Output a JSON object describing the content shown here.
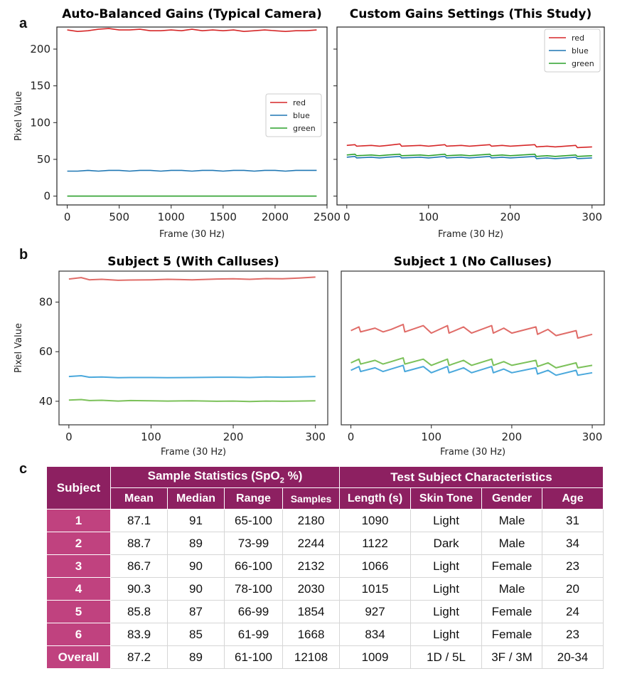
{
  "panels": {
    "a": "a",
    "b": "b",
    "c": "c"
  },
  "chart_data": [
    {
      "id": "a-left",
      "type": "line",
      "title": "Auto-Balanced Gains (Typical Camera)",
      "xlabel": "Frame (30 Hz)",
      "ylabel": "Pixel Value",
      "xlim": [
        -100,
        2500
      ],
      "ylim": [
        -12,
        230
      ],
      "xticks": [
        0,
        500,
        1000,
        1500,
        2000,
        2500
      ],
      "yticks": [
        0,
        50,
        100,
        150,
        200
      ],
      "legend": "center-right",
      "x": [
        0,
        100,
        200,
        300,
        400,
        500,
        600,
        700,
        800,
        900,
        1000,
        1100,
        1200,
        1300,
        1400,
        1500,
        1600,
        1700,
        1800,
        1900,
        2000,
        2100,
        2200,
        2300,
        2400
      ],
      "series": [
        {
          "name": "red",
          "color": "#d62728",
          "values": [
            226,
            224,
            225,
            227,
            228,
            226,
            226,
            227,
            225,
            225,
            226,
            225,
            227,
            225,
            226,
            225,
            226,
            224,
            225,
            226,
            225,
            224,
            225,
            225,
            226
          ]
        },
        {
          "name": "blue",
          "color": "#1f77b4",
          "values": [
            34,
            34,
            35,
            34,
            35,
            35,
            34,
            35,
            35,
            34,
            35,
            35,
            34,
            35,
            35,
            34,
            35,
            35,
            34,
            35,
            35,
            34,
            35,
            35,
            35
          ]
        },
        {
          "name": "green",
          "color": "#2ca02c",
          "values": [
            0,
            0,
            0,
            0,
            0,
            0,
            0,
            0,
            0,
            0,
            0,
            0,
            0,
            0,
            0,
            0,
            0,
            0,
            0,
            0,
            0,
            0,
            0,
            0,
            0
          ]
        }
      ]
    },
    {
      "id": "a-right",
      "type": "line",
      "title": "Custom Gains Settings (This Study)",
      "xlabel": "Frame (30 Hz)",
      "ylabel": "",
      "xlim": [
        -12,
        315
      ],
      "ylim": [
        -12,
        230
      ],
      "xticks": [
        0,
        100,
        200,
        300
      ],
      "yticks": [
        0,
        50,
        100,
        150,
        200
      ],
      "legend": "top-right",
      "x": [
        0,
        10,
        12,
        30,
        40,
        50,
        65,
        67,
        90,
        100,
        120,
        122,
        140,
        150,
        175,
        177,
        190,
        200,
        230,
        232,
        245,
        255,
        280,
        282,
        300
      ],
      "series": [
        {
          "name": "red",
          "color": "#d62728",
          "values": [
            69,
            70,
            68,
            69,
            68,
            69,
            71,
            68,
            69,
            68,
            70,
            68,
            69,
            68,
            70,
            68,
            69,
            68,
            70,
            67,
            68,
            67,
            69,
            66,
            67
          ]
        },
        {
          "name": "blue",
          "color": "#1f77b4",
          "values": [
            53,
            54,
            52,
            53,
            52,
            53,
            54,
            52,
            53,
            52,
            54,
            52,
            53,
            52,
            54,
            52,
            53,
            52,
            54,
            51,
            52,
            51,
            53,
            51,
            52
          ]
        },
        {
          "name": "green",
          "color": "#2ca02c",
          "values": [
            56,
            57,
            55,
            56,
            55,
            56,
            57,
            55,
            56,
            55,
            57,
            55,
            56,
            55,
            57,
            55,
            56,
            55,
            57,
            54,
            55,
            54,
            56,
            54,
            55
          ]
        }
      ]
    },
    {
      "id": "b-left",
      "type": "line",
      "title": "Subject 5 (With Calluses)",
      "xlabel": "Frame (30 Hz)",
      "ylabel": "Pixel Value",
      "xlim": [
        -12,
        315
      ],
      "ylim": [
        30.5,
        92.5
      ],
      "xticks": [
        0,
        100,
        200,
        300
      ],
      "yticks": [
        40,
        60,
        80
      ],
      "x": [
        0,
        15,
        25,
        40,
        60,
        75,
        100,
        120,
        150,
        180,
        200,
        220,
        240,
        260,
        280,
        300
      ],
      "series": [
        {
          "name": "red",
          "color": "#e06c68",
          "values": [
            89.3,
            89.9,
            89.0,
            89.2,
            88.8,
            88.9,
            89.0,
            89.2,
            89.0,
            89.3,
            89.4,
            89.2,
            89.5,
            89.4,
            89.7,
            90.1
          ]
        },
        {
          "name": "blue",
          "color": "#4aa8dc",
          "values": [
            50.0,
            50.3,
            49.7,
            49.8,
            49.5,
            49.6,
            49.6,
            49.5,
            49.6,
            49.7,
            49.7,
            49.6,
            49.8,
            49.7,
            49.8,
            50.0
          ]
        },
        {
          "name": "green",
          "color": "#7cc15a",
          "values": [
            40.5,
            40.7,
            40.3,
            40.4,
            40.1,
            40.3,
            40.2,
            40.1,
            40.2,
            40.0,
            40.1,
            39.9,
            40.1,
            40.0,
            40.1,
            40.2
          ]
        }
      ]
    },
    {
      "id": "b-right",
      "type": "line",
      "title": "Subject 1 (No Calluses)",
      "xlabel": "Frame (30 Hz)",
      "ylabel": "",
      "xlim": [
        -12,
        315
      ],
      "ylim": [
        30.5,
        92.5
      ],
      "xticks": [
        0,
        100,
        200,
        300
      ],
      "yticks": [],
      "x": [
        0,
        10,
        12,
        30,
        40,
        50,
        65,
        67,
        90,
        100,
        120,
        122,
        140,
        150,
        175,
        177,
        190,
        200,
        230,
        232,
        245,
        255,
        280,
        282,
        300
      ],
      "series": [
        {
          "name": "red",
          "color": "#e06c68",
          "values": [
            68.5,
            70,
            68,
            69.5,
            68,
            69,
            71,
            68,
            70.5,
            67.5,
            70.5,
            67.5,
            70,
            67.5,
            70.5,
            67.5,
            69.5,
            67.5,
            70,
            67,
            69,
            66.5,
            68.5,
            65.5,
            67
          ]
        },
        {
          "name": "blue",
          "color": "#4aa8dc",
          "values": [
            52.5,
            54,
            52,
            53.5,
            52,
            53,
            54.5,
            52,
            54,
            51.5,
            54,
            51.5,
            53.5,
            51.5,
            54,
            51.5,
            53,
            51.5,
            53.5,
            51,
            52.5,
            50.5,
            52.5,
            50.5,
            51.5
          ]
        },
        {
          "name": "green",
          "color": "#7cc15a",
          "values": [
            55.5,
            57,
            55,
            56.5,
            55,
            56,
            57.5,
            55,
            57,
            54.5,
            57,
            54.5,
            56.5,
            54.5,
            57,
            54.5,
            56,
            54.5,
            56.5,
            54,
            55.5,
            53.5,
            55.5,
            53.5,
            54.5
          ]
        }
      ]
    }
  ],
  "table": {
    "headers": {
      "subject": "Subject",
      "sample_statistics": "Sample Statistics (SpO",
      "sample_statistics_sub": "2",
      "sample_statistics_tail": " %)",
      "test_subject": "Test Subject Characteristics",
      "mean": "Mean",
      "median": "Median",
      "range": "Range",
      "samples": "Samples",
      "length": "Length (s)",
      "skin_tone": "Skin Tone",
      "gender": "Gender",
      "age": "Age"
    },
    "rows": [
      [
        "1",
        "87.1",
        "91",
        "65-100",
        "2180",
        "1090",
        "Light",
        "Male",
        "31"
      ],
      [
        "2",
        "88.7",
        "89",
        "73-99",
        "2244",
        "1122",
        "Dark",
        "Male",
        "34"
      ],
      [
        "3",
        "86.7",
        "90",
        "66-100",
        "2132",
        "1066",
        "Light",
        "Female",
        "23"
      ],
      [
        "4",
        "90.3",
        "90",
        "78-100",
        "2030",
        "1015",
        "Light",
        "Male",
        "20"
      ],
      [
        "5",
        "85.8",
        "87",
        "66-99",
        "1854",
        "927",
        "Light",
        "Female",
        "24"
      ],
      [
        "6",
        "83.9",
        "85",
        "61-99",
        "1668",
        "834",
        "Light",
        "Female",
        "23"
      ],
      [
        "Overall",
        "87.2",
        "89",
        "61-100",
        "12108",
        "1009",
        "1D / 5L",
        "3F / 3M",
        "20-34"
      ]
    ]
  }
}
